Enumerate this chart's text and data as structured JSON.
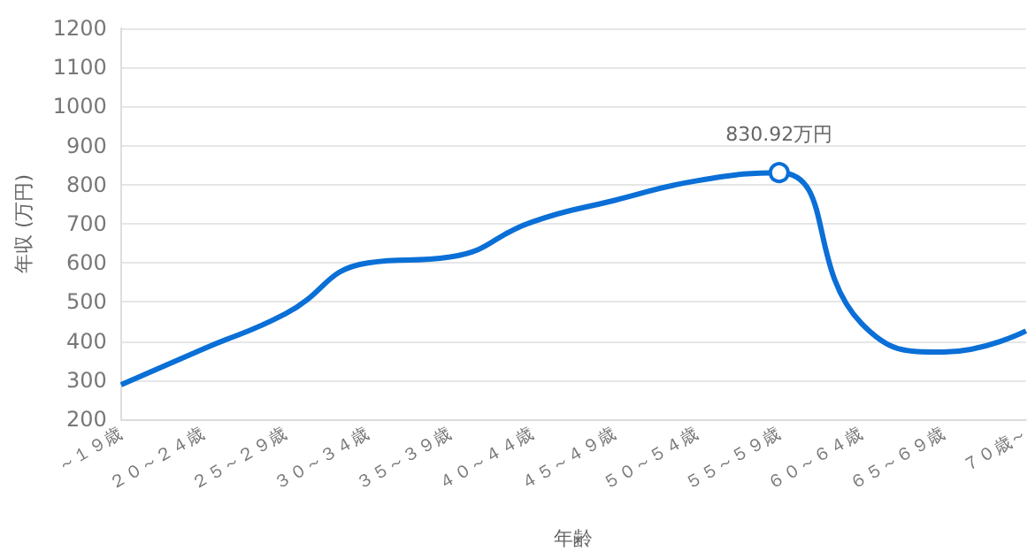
{
  "chart_data": {
    "type": "line",
    "xlabel": "年齢",
    "ylabel": "年収 (万円)",
    "categories": [
      "～１９歳",
      "２０～２４歳",
      "２５～２９歳",
      "３０～３４歳",
      "３５～３９歳",
      "４０～４４歳",
      "４５～４９歳",
      "５０～５４歳",
      "５５～５９歳",
      "６０～６４歳",
      "６５～６９歳",
      "７０歳～"
    ],
    "series": [
      {
        "color": "#0a6fd6",
        "values": [
          288,
          380,
          470,
          600,
          615,
          705,
          760,
          810,
          830.92,
          445,
          372,
          426
        ],
        "value_labels": [
          null,
          null,
          null,
          null,
          null,
          null,
          null,
          null,
          "830.92万円",
          null,
          null,
          null
        ]
      }
    ],
    "ylim": [
      200,
      1200
    ],
    "yticks": [
      200,
      300,
      400,
      500,
      600,
      700,
      800,
      900,
      1000,
      1100,
      1200
    ],
    "grid": "y"
  }
}
